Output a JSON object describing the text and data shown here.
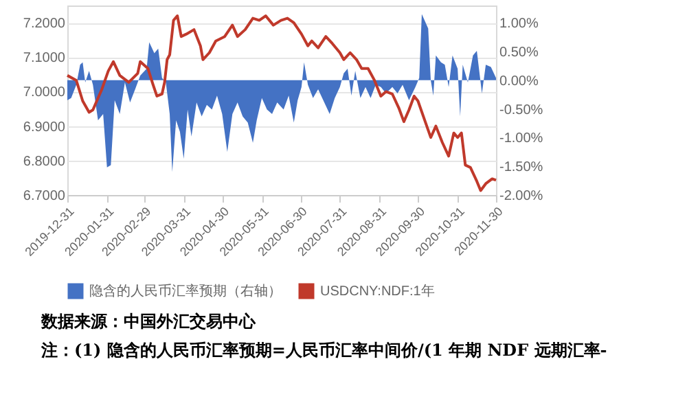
{
  "chart_data": {
    "type": "line",
    "x": [
      "2019-12-31",
      "2020-01-07",
      "2020-01-12",
      "2020-01-17",
      "2020-01-20",
      "2020-01-27",
      "2020-02-01",
      "2020-02-05",
      "2020-02-10",
      "2020-02-17",
      "2020-02-24",
      "2020-02-26",
      "2020-03-03",
      "2020-03-07",
      "2020-03-10",
      "2020-03-14",
      "2020-03-16",
      "2020-03-18",
      "2020-03-20",
      "2020-03-23",
      "2020-03-26",
      "2020-03-29",
      "2020-04-02",
      "2020-04-08",
      "2020-04-13",
      "2020-04-15",
      "2020-04-20",
      "2020-04-25",
      "2020-05-02",
      "2020-05-08",
      "2020-05-12",
      "2020-05-18",
      "2020-05-24",
      "2020-05-29",
      "2020-06-03",
      "2020-06-09",
      "2020-06-15",
      "2020-06-20",
      "2020-06-25",
      "2020-07-01",
      "2020-07-06",
      "2020-07-09",
      "2020-07-14",
      "2020-07-20",
      "2020-07-25",
      "2020-07-31",
      "2020-08-03",
      "2020-08-08",
      "2020-08-13",
      "2020-08-17",
      "2020-08-22",
      "2020-08-27",
      "2020-09-01",
      "2020-09-05",
      "2020-09-10",
      "2020-09-15",
      "2020-09-19",
      "2020-09-23",
      "2020-09-27",
      "2020-09-30",
      "2020-10-05",
      "2020-10-10",
      "2020-10-14",
      "2020-10-19",
      "2020-10-24",
      "2020-10-28",
      "2020-10-31",
      "2020-11-03",
      "2020-11-06",
      "2020-11-10",
      "2020-11-15",
      "2020-11-18",
      "2020-11-22",
      "2020-11-27",
      "2020-11-30"
    ],
    "series": [
      {
        "name": "隐含的人民币汇率预期（右轴）",
        "type": "area",
        "axis": "y2",
        "color": "#4472c4",
        "x": [
          "2019-12-31",
          "2020-01-03",
          "2020-01-07",
          "2020-01-10",
          "2020-01-12",
          "2020-01-14",
          "2020-01-17",
          "2020-01-20",
          "2020-01-24",
          "2020-01-28",
          "2020-01-31",
          "2020-02-03",
          "2020-02-06",
          "2020-02-10",
          "2020-02-14",
          "2020-02-18",
          "2020-02-22",
          "2020-02-26",
          "2020-03-02",
          "2020-03-04",
          "2020-03-08",
          "2020-03-11",
          "2020-03-14",
          "2020-03-17",
          "2020-03-20",
          "2020-03-22",
          "2020-03-25",
          "2020-03-28",
          "2020-03-31",
          "2020-04-03",
          "2020-04-06",
          "2020-04-10",
          "2020-04-14",
          "2020-04-18",
          "2020-04-22",
          "2020-04-26",
          "2020-04-30",
          "2020-05-04",
          "2020-05-08",
          "2020-05-12",
          "2020-05-16",
          "2020-05-20",
          "2020-05-24",
          "2020-05-27",
          "2020-05-31",
          "2020-06-04",
          "2020-06-08",
          "2020-06-12",
          "2020-06-17",
          "2020-06-21",
          "2020-06-25",
          "2020-06-28",
          "2020-07-01",
          "2020-07-03",
          "2020-07-06",
          "2020-07-10",
          "2020-07-14",
          "2020-07-18",
          "2020-07-23",
          "2020-07-27",
          "2020-07-31",
          "2020-08-03",
          "2020-08-06",
          "2020-08-09",
          "2020-08-12",
          "2020-08-16",
          "2020-08-20",
          "2020-08-24",
          "2020-08-28",
          "2020-09-01",
          "2020-09-05",
          "2020-09-10",
          "2020-09-14",
          "2020-09-18",
          "2020-09-23",
          "2020-09-28",
          "2020-10-01",
          "2020-10-03",
          "2020-10-08",
          "2020-10-10",
          "2020-10-12",
          "2020-10-14",
          "2020-10-18",
          "2020-10-21",
          "2020-10-24",
          "2020-10-27",
          "2020-10-31",
          "2020-11-02",
          "2020-11-04",
          "2020-11-08",
          "2020-11-12",
          "2020-11-15",
          "2020-11-19",
          "2020-11-22",
          "2020-11-26",
          "2020-11-30"
        ],
        "values": [
          -0.35,
          -0.31,
          -0.08,
          0.27,
          0.31,
          -0.04,
          0.16,
          -0.08,
          -0.7,
          -0.59,
          -1.52,
          -1.48,
          -0.35,
          -0.59,
          -0.04,
          -0.39,
          -0.16,
          0.08,
          0.2,
          0.66,
          0.47,
          0.55,
          0.04,
          -0.04,
          -0.59,
          -1.6,
          -0.7,
          -0.9,
          -1.37,
          -0.51,
          -0.98,
          -0.39,
          -0.63,
          -0.43,
          -0.51,
          -0.27,
          -0.59,
          -1.25,
          -0.59,
          -0.39,
          -0.63,
          -0.74,
          -1.09,
          -0.7,
          -0.31,
          -0.51,
          -0.59,
          -0.39,
          -0.51,
          -0.27,
          -0.74,
          -0.35,
          -0.12,
          0.31,
          -0.08,
          -0.31,
          -0.16,
          -0.35,
          -0.59,
          -0.31,
          -0.12,
          0.12,
          0.2,
          -0.27,
          0.16,
          -0.31,
          -0.12,
          -0.31,
          -0.08,
          -0.12,
          -0.23,
          -0.12,
          -0.23,
          -0.08,
          -0.35,
          -0.12,
          0.04,
          1.15,
          0.9,
          0,
          -0.27,
          0.43,
          0.31,
          0.27,
          -0.12,
          0.43,
          0.2,
          -0.63,
          0.27,
          -0.04,
          0.43,
          0.51,
          -0.23,
          0.27,
          0.23,
          0.04
        ]
      },
      {
        "name": "USDCNY:NDF:1年",
        "color": "#c0392b",
        "values": [
          7.047,
          7.033,
          6.973,
          6.94,
          6.947,
          7.007,
          7.06,
          7.087,
          7.047,
          7.027,
          7.053,
          7.087,
          7.067,
          7.02,
          6.987,
          6.993,
          7.027,
          7.093,
          7.107,
          7.207,
          7.22,
          7.16,
          7.167,
          7.18,
          7.133,
          7.093,
          7.113,
          7.147,
          7.16,
          7.193,
          7.16,
          7.18,
          7.213,
          7.207,
          7.22,
          7.193,
          7.207,
          7.213,
          7.2,
          7.167,
          7.133,
          7.147,
          7.127,
          7.16,
          7.14,
          7.113,
          7.093,
          7.113,
          7.093,
          7.067,
          7.067,
          7.033,
          6.987,
          7.0,
          6.993,
          6.953,
          6.913,
          6.947,
          6.987,
          6.973,
          6.92,
          6.867,
          6.9,
          6.853,
          6.813,
          6.88,
          6.867,
          6.88,
          6.787,
          6.78,
          6.74,
          6.713,
          6.733,
          6.747,
          6.743
        ]
      }
    ],
    "xlim": [
      "2019-12-31",
      "2020-11-30"
    ],
    "xticks": [
      "2019-12-31",
      "2020-01-31",
      "2020-02-29",
      "2020-03-31",
      "2020-04-30",
      "2020-05-31",
      "2020-06-30",
      "2020-07-31",
      "2020-08-31",
      "2020-09-30",
      "2020-10-31",
      "2020-11-30"
    ],
    "ylim": [
      6.7,
      7.25
    ],
    "yticks": [
      {
        "value": 6.7,
        "label": "6.7000"
      },
      {
        "value": 6.8,
        "label": "6.8000"
      },
      {
        "value": 6.9,
        "label": "6.9000"
      },
      {
        "value": 7.0,
        "label": "7.0000"
      },
      {
        "value": 7.1,
        "label": "7.1000"
      },
      {
        "value": 7.2,
        "label": "7.2000"
      }
    ],
    "y2lim": [
      -2.0,
      1.3
    ],
    "y2ticks": [
      {
        "value": -2,
        "label": "-2.00%"
      },
      {
        "value": -1.5,
        "label": "-1.50%"
      },
      {
        "value": -1,
        "label": "-1.00%"
      },
      {
        "value": -0.5,
        "label": "-0.50%"
      },
      {
        "value": 0,
        "label": "0.00%"
      },
      {
        "value": 0.5,
        "label": "0.50%"
      },
      {
        "value": 1,
        "label": "1.00%"
      }
    ],
    "grid": "y",
    "legend": "bottom",
    "line_style": "solid",
    "annotations": [
      "数据来源：中国外汇交易中心",
      "注：(1) 隐含的人民币汇率预期=人民币汇率中间价/(1 年期 NDF 远期汇率-"
    ]
  }
}
